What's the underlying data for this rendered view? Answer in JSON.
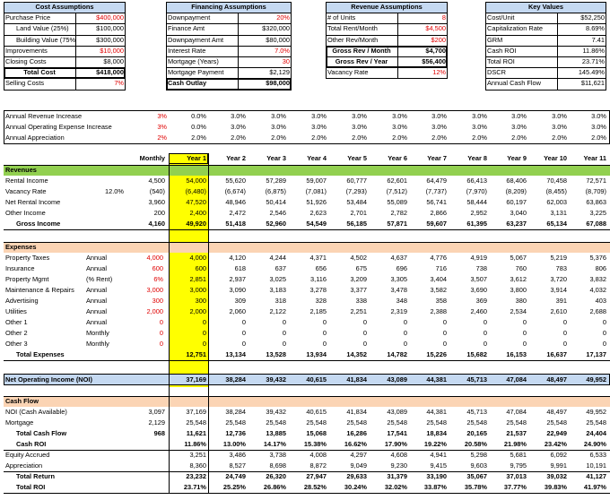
{
  "colors": {
    "header_blue": "#c5d9f1",
    "section_green": "#92d050",
    "section_peach": "#fbd4b4",
    "section_blue": "#c5d9f1",
    "year1_yellow": "#ffff00",
    "red_text": "#e00000",
    "grid": "#c0c0c0"
  },
  "assumptions": {
    "cost": {
      "title": "Cost Assumptions",
      "rows": [
        {
          "label": "Purchase Price",
          "value": "$400,000",
          "red": true
        },
        {
          "label": "Land Value (25%)",
          "value": "$100,000",
          "red": false,
          "indent": true
        },
        {
          "label": "Building Value (75%)",
          "value": "$300,000",
          "red": false,
          "indent": true
        },
        {
          "label": "Improvements",
          "value": "$10,000",
          "red": true
        },
        {
          "label": "Closing Costs",
          "value": "$8,000",
          "red": false
        },
        {
          "label": "Total Cost",
          "value": "$418,000",
          "red": false,
          "bold": true,
          "center": true
        },
        {
          "label": "Selling Costs",
          "value": "7%",
          "red": true
        }
      ]
    },
    "financing": {
      "title": "Financing Assumptions",
      "rows": [
        {
          "label": "Downpayment",
          "value": "20%",
          "red": true
        },
        {
          "label": "Finance Amt",
          "value": "$320,000",
          "red": false
        },
        {
          "label": "Downpayment Amt",
          "value": "$80,000",
          "red": false
        },
        {
          "label": "Interest Rate",
          "value": "7.0%",
          "red": true
        },
        {
          "label": "Mortgage (Years)",
          "value": "30",
          "red": true
        },
        {
          "label": "Mortgage Payment",
          "value": "$2,129",
          "red": false
        },
        {
          "label": "Cash Outlay",
          "value": "$98,000",
          "red": false,
          "bold": true
        }
      ]
    },
    "revenue": {
      "title": "Revenue Assumptions",
      "rows": [
        {
          "label": "# of Units",
          "value": "8",
          "red": true
        },
        {
          "label": "Total Rent/Month",
          "value": "$4,500",
          "red": true
        },
        {
          "label": "Other Rev/Month",
          "value": "$200",
          "red": true
        },
        {
          "label": "Gross Rev / Month",
          "value": "$4,700",
          "red": false,
          "bold": true,
          "center": true
        },
        {
          "label": "Gross Rev / Year",
          "value": "$56,400",
          "red": false,
          "bold": true,
          "center": true
        },
        {
          "label": "Vacancy Rate",
          "value": "12%",
          "red": true
        }
      ]
    },
    "key": {
      "title": "Key Values",
      "rows": [
        {
          "label": "Cost/Unit",
          "value": "$52,250"
        },
        {
          "label": "Capitalization Rate",
          "value": "8.69%"
        },
        {
          "label": "GRM",
          "value": "7.41"
        },
        {
          "label": "Cash ROI",
          "value": "11.86%"
        },
        {
          "label": "Total ROI",
          "value": "23.71%"
        },
        {
          "label": "DSCR",
          "value": "145.49%"
        },
        {
          "label": "Annual Cash Flow",
          "value": "$11,621"
        }
      ]
    }
  },
  "rates": [
    {
      "label": "Annual Revenue Increase",
      "first": "3%",
      "values": [
        "0.0%",
        "3.0%",
        "3.0%",
        "3.0%",
        "3.0%",
        "3.0%",
        "3.0%",
        "3.0%",
        "3.0%",
        "3.0%",
        "3.0%"
      ]
    },
    {
      "label": "Annual Operating Expense Increase",
      "first": "3%",
      "values": [
        "0.0%",
        "3.0%",
        "3.0%",
        "3.0%",
        "3.0%",
        "3.0%",
        "3.0%",
        "3.0%",
        "3.0%",
        "3.0%",
        "3.0%"
      ]
    },
    {
      "label": "Annual Appreciation",
      "first": "2%",
      "values": [
        "2.0%",
        "2.0%",
        "2.0%",
        "2.0%",
        "2.0%",
        "2.0%",
        "2.0%",
        "2.0%",
        "2.0%",
        "2.0%",
        "2.0%"
      ]
    }
  ],
  "columns": [
    "Monthly",
    "Year 1",
    "Year 2",
    "Year 3",
    "Year 4",
    "Year 5",
    "Year 6",
    "Year 7",
    "Year 8",
    "Year 9",
    "Year 10",
    "Year 11"
  ],
  "revenues": {
    "title": "Revenues",
    "rows": [
      {
        "label": "Rental Income",
        "note": "",
        "values": [
          "4,500",
          "54,000",
          "55,620",
          "57,289",
          "59,007",
          "60,777",
          "62,601",
          "64,479",
          "66,413",
          "68,406",
          "70,458",
          "72,571"
        ]
      },
      {
        "label": "Vacancy Rate",
        "note": "12.0%",
        "values": [
          "(540)",
          "(6,480)",
          "(6,674)",
          "(6,875)",
          "(7,081)",
          "(7,293)",
          "(7,512)",
          "(7,737)",
          "(7,970)",
          "(8,209)",
          "(8,455)",
          "(8,709)"
        ]
      },
      {
        "label": "Net Rental Income",
        "note": "",
        "values": [
          "3,960",
          "47,520",
          "48,946",
          "50,414",
          "51,926",
          "53,484",
          "55,089",
          "56,741",
          "58,444",
          "60,197",
          "62,003",
          "63,863"
        ]
      },
      {
        "label": "Other Income",
        "note": "",
        "values": [
          "200",
          "2,400",
          "2,472",
          "2,546",
          "2,623",
          "2,701",
          "2,782",
          "2,866",
          "2,952",
          "3,040",
          "3,131",
          "3,225"
        ]
      }
    ],
    "total": {
      "label": "Gross Income",
      "values": [
        "4,160",
        "49,920",
        "51,418",
        "52,960",
        "54,549",
        "56,185",
        "57,871",
        "59,607",
        "61,395",
        "63,237",
        "65,134",
        "67,088"
      ]
    }
  },
  "expenses": {
    "title": "Expenses",
    "rows": [
      {
        "label": "Property Taxes",
        "freq": "Annual",
        "input": "4,000",
        "values": [
          "4,000",
          "4,120",
          "4,244",
          "4,371",
          "4,502",
          "4,637",
          "4,776",
          "4,919",
          "5,067",
          "5,219",
          "5,376"
        ]
      },
      {
        "label": "Insurance",
        "freq": "Annual",
        "input": "600",
        "values": [
          "600",
          "618",
          "637",
          "656",
          "675",
          "696",
          "716",
          "738",
          "760",
          "783",
          "806"
        ]
      },
      {
        "label": "Property Mgmt",
        "freq": "(% Rent)",
        "input": "6%",
        "values": [
          "2,851",
          "2,937",
          "3,025",
          "3,116",
          "3,209",
          "3,305",
          "3,404",
          "3,507",
          "3,612",
          "3,720",
          "3,832"
        ]
      },
      {
        "label": "Maintenance & Repairs",
        "freq": "Annual",
        "input": "3,000",
        "values": [
          "3,000",
          "3,090",
          "3,183",
          "3,278",
          "3,377",
          "3,478",
          "3,582",
          "3,690",
          "3,800",
          "3,914",
          "4,032"
        ]
      },
      {
        "label": "Advertising",
        "freq": "Annual",
        "input": "300",
        "values": [
          "300",
          "309",
          "318",
          "328",
          "338",
          "348",
          "358",
          "369",
          "380",
          "391",
          "403"
        ]
      },
      {
        "label": "Utilities",
        "freq": "Annual",
        "input": "2,000",
        "values": [
          "2,000",
          "2,060",
          "2,122",
          "2,185",
          "2,251",
          "2,319",
          "2,388",
          "2,460",
          "2,534",
          "2,610",
          "2,688"
        ]
      },
      {
        "label": "Other 1",
        "freq": "Annual",
        "input": "0",
        "values": [
          "0",
          "0",
          "0",
          "0",
          "0",
          "0",
          "0",
          "0",
          "0",
          "0",
          "0"
        ]
      },
      {
        "label": "Other 2",
        "freq": "Monthly",
        "input": "0",
        "values": [
          "0",
          "0",
          "0",
          "0",
          "0",
          "0",
          "0",
          "0",
          "0",
          "0",
          "0"
        ]
      },
      {
        "label": "Other 3",
        "freq": "Monthly",
        "input": "0",
        "values": [
          "0",
          "0",
          "0",
          "0",
          "0",
          "0",
          "0",
          "0",
          "0",
          "0",
          "0"
        ]
      }
    ],
    "total": {
      "label": "Total Expenses",
      "values": [
        "12,751",
        "13,134",
        "13,528",
        "13,934",
        "14,352",
        "14,782",
        "15,226",
        "15,682",
        "16,153",
        "16,637",
        "17,137"
      ]
    }
  },
  "noi": {
    "label": "Net Operating Income (NOI)",
    "values": [
      "37,169",
      "38,284",
      "39,432",
      "40,615",
      "41,834",
      "43,089",
      "44,381",
      "45,713",
      "47,084",
      "48,497",
      "49,952"
    ]
  },
  "cashflow": {
    "title": "Cash Flow",
    "rows": [
      {
        "label": "NOI (Cash Available)",
        "values": [
          "3,097",
          "37,169",
          "38,284",
          "39,432",
          "40,615",
          "41,834",
          "43,089",
          "44,381",
          "45,713",
          "47,084",
          "48,497",
          "49,952"
        ]
      },
      {
        "label": "Mortgage",
        "values": [
          "2,129",
          "25,548",
          "25,548",
          "25,548",
          "25,548",
          "25,548",
          "25,548",
          "25,548",
          "25,548",
          "25,548",
          "25,548",
          "25,548"
        ]
      }
    ],
    "total_cash_flow": {
      "label": "Total Cash Flow",
      "values": [
        "968",
        "11,621",
        "12,736",
        "13,885",
        "15,068",
        "16,286",
        "17,541",
        "18,834",
        "20,165",
        "21,537",
        "22,949",
        "24,404"
      ]
    },
    "cash_roi": {
      "label": "Cash ROI",
      "values": [
        "",
        "11.86%",
        "13.00%",
        "14.17%",
        "15.38%",
        "16.62%",
        "17.90%",
        "19.22%",
        "20.58%",
        "21.98%",
        "23.42%",
        "24.90%"
      ]
    },
    "equity": {
      "label": "Equity Accrued",
      "values": [
        "",
        "3,251",
        "3,486",
        "3,738",
        "4,008",
        "4,297",
        "4,608",
        "4,941",
        "5,298",
        "5,681",
        "6,092",
        "6,533"
      ]
    },
    "appreciation": {
      "label": "Appreciation",
      "values": [
        "",
        "8,360",
        "8,527",
        "8,698",
        "8,872",
        "9,049",
        "9,230",
        "9,415",
        "9,603",
        "9,795",
        "9,991",
        "10,191"
      ]
    },
    "total_return": {
      "label": "Total Return",
      "values": [
        "",
        "23,232",
        "24,749",
        "26,320",
        "27,947",
        "29,633",
        "31,379",
        "33,190",
        "35,067",
        "37,013",
        "39,032",
        "41,127"
      ]
    },
    "total_roi": {
      "label": "Total ROI",
      "values": [
        "",
        "23.71%",
        "25.25%",
        "26.86%",
        "28.52%",
        "30.24%",
        "32.02%",
        "33.87%",
        "35.78%",
        "37.77%",
        "39.83%",
        "41.97%"
      ]
    }
  }
}
